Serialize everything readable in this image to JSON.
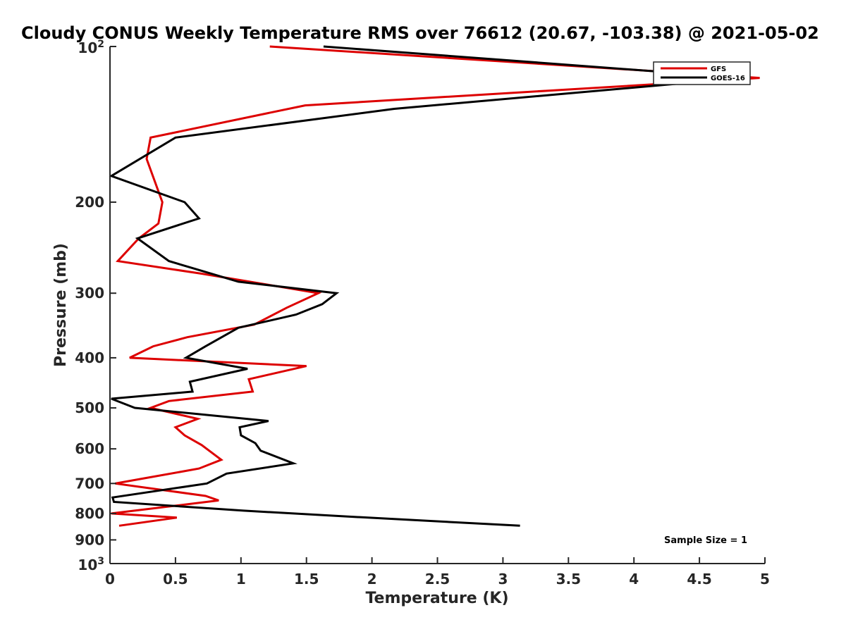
{
  "chart_data": {
    "type": "line",
    "title": "Cloudy CONUS Weekly Temperature RMS over 76612 (20.67, -103.38) @ 2021-05-02",
    "xlabel": "Temperature (K)",
    "ylabel": "Pressure (mb)",
    "xlim": [
      0,
      5
    ],
    "ylim": [
      100,
      1000
    ],
    "yscale": "log",
    "y_reversed": true,
    "x_ticks": [
      "0",
      "0.5",
      "1",
      "1.5",
      "2",
      "2.5",
      "3",
      "3.5",
      "4",
      "4.5",
      "5"
    ],
    "y_ticks": [
      {
        "value": 100,
        "base": "10",
        "exp": "2"
      },
      {
        "value": 200,
        "label": "200"
      },
      {
        "value": 300,
        "label": "300"
      },
      {
        "value": 400,
        "label": "400"
      },
      {
        "value": 500,
        "label": "500"
      },
      {
        "value": 600,
        "label": "600"
      },
      {
        "value": 700,
        "label": "700"
      },
      {
        "value": 800,
        "label": "800"
      },
      {
        "value": 900,
        "label": "900"
      },
      {
        "value": 1000,
        "base": "10",
        "exp": "3"
      }
    ],
    "grid": false,
    "legend_position": "top-right",
    "annotation": "Sample Size = 1",
    "series": [
      {
        "name": "GFS",
        "color": "#dd0000",
        "points": [
          [
            1.22,
            100
          ],
          [
            4.96,
            115
          ],
          [
            1.49,
            130
          ],
          [
            0.31,
            150
          ],
          [
            0.28,
            165
          ],
          [
            0.4,
            200
          ],
          [
            0.37,
            220
          ],
          [
            0.22,
            235
          ],
          [
            0.06,
            260
          ],
          [
            0.7,
            275
          ],
          [
            1.59,
            300
          ],
          [
            1.35,
            320
          ],
          [
            1.1,
            345
          ],
          [
            0.59,
            365
          ],
          [
            0.33,
            380
          ],
          [
            0.15,
            400
          ],
          [
            1.5,
            415
          ],
          [
            1.06,
            440
          ],
          [
            1.09,
            465
          ],
          [
            0.45,
            485
          ],
          [
            0.31,
            500
          ],
          [
            0.67,
            525
          ],
          [
            0.5,
            545
          ],
          [
            0.57,
            565
          ],
          [
            0.7,
            590
          ],
          [
            0.85,
            630
          ],
          [
            0.68,
            655
          ],
          [
            0.25,
            685
          ],
          [
            0.04,
            700
          ],
          [
            0.73,
            740
          ],
          [
            0.83,
            755
          ],
          [
            0.01,
            800
          ],
          [
            0.51,
            815
          ],
          [
            0.07,
            845
          ]
        ]
      },
      {
        "name": "GOES-16",
        "color": "#000000",
        "points": [
          [
            1.63,
            100
          ],
          [
            4.83,
            115
          ],
          [
            2.17,
            132
          ],
          [
            0.5,
            150
          ],
          [
            0.01,
            178
          ],
          [
            0.57,
            200
          ],
          [
            0.68,
            215
          ],
          [
            0.21,
            235
          ],
          [
            0.45,
            260
          ],
          [
            0.98,
            285
          ],
          [
            1.73,
            300
          ],
          [
            1.62,
            315
          ],
          [
            1.42,
            330
          ],
          [
            0.98,
            350
          ],
          [
            0.73,
            380
          ],
          [
            0.58,
            400
          ],
          [
            1.05,
            420
          ],
          [
            0.61,
            445
          ],
          [
            0.63,
            465
          ],
          [
            0.01,
            480
          ],
          [
            0.19,
            500
          ],
          [
            1.21,
            530
          ],
          [
            0.99,
            545
          ],
          [
            1.0,
            565
          ],
          [
            1.11,
            585
          ],
          [
            1.15,
            605
          ],
          [
            1.4,
            640
          ],
          [
            0.89,
            670
          ],
          [
            0.74,
            700
          ],
          [
            0.02,
            745
          ],
          [
            0.03,
            760
          ],
          [
            1.02,
            790
          ],
          [
            1.97,
            815
          ],
          [
            3.13,
            845
          ]
        ]
      }
    ]
  }
}
